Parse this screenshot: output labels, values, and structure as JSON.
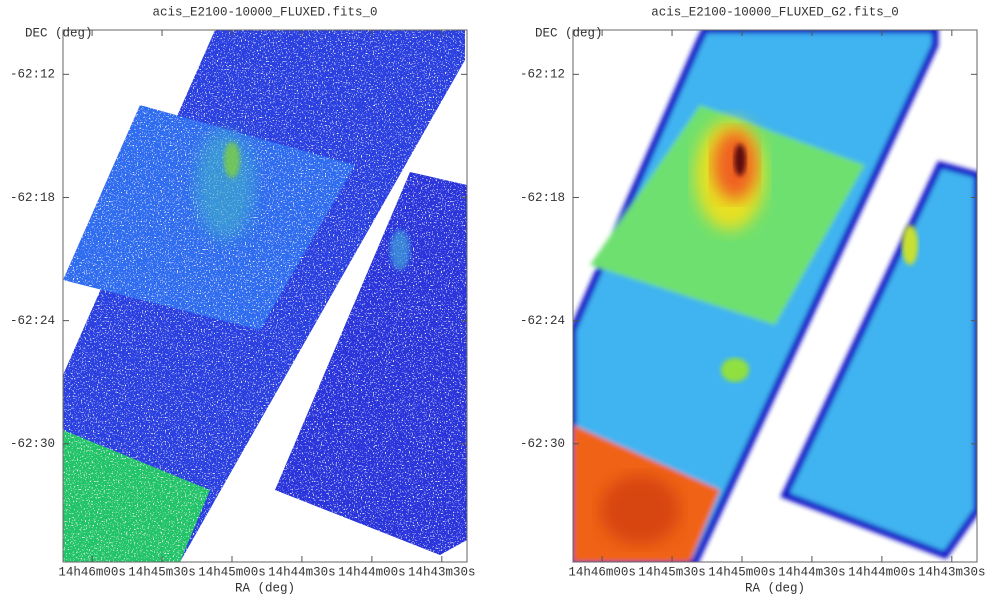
{
  "chart_data": [
    {
      "type": "image",
      "title": "acis_E2100-10000_FLUXED.fits_0",
      "xlabel": "RA (deg)",
      "ylabel": "DEC (deg)",
      "xlim": [
        221.552,
        220.83
      ],
      "ylim": [
        -62.596,
        -62.164
      ],
      "xticks": [
        {
          "value": 221.5,
          "label": "14h46m00s"
        },
        {
          "value": 221.375,
          "label": "14h45m30s"
        },
        {
          "value": 221.25,
          "label": "14h45m00s"
        },
        {
          "value": 221.125,
          "label": "14h44m30s"
        },
        {
          "value": 221.0,
          "label": "14h44m00s"
        },
        {
          "value": 220.875,
          "label": "14h43m30s"
        }
      ],
      "yticks": [
        {
          "value": -62.2,
          "label": "-62:12"
        },
        {
          "value": -62.3,
          "label": "-62:18"
        },
        {
          "value": -62.4,
          "label": "-62:24"
        },
        {
          "value": -62.5,
          "label": "-62:30"
        }
      ]
    },
    {
      "type": "image",
      "title": "acis_E2100-10000_FLUXED_G2.fits_0",
      "xlabel": "RA (deg)",
      "ylabel": "DEC (deg)",
      "xlim": [
        221.552,
        220.83
      ],
      "ylim": [
        -62.596,
        -62.164
      ],
      "xticks": [
        {
          "value": 221.5,
          "label": "14h46m00s"
        },
        {
          "value": 221.375,
          "label": "14h45m30s"
        },
        {
          "value": 221.25,
          "label": "14h45m00s"
        },
        {
          "value": 221.125,
          "label": "14h44m30s"
        },
        {
          "value": 221.0,
          "label": "14h44m00s"
        },
        {
          "value": 220.875,
          "label": "14h43m30s"
        }
      ],
      "yticks": [
        {
          "value": -62.2,
          "label": "-62:12"
        },
        {
          "value": -62.3,
          "label": "-62:18"
        },
        {
          "value": -62.4,
          "label": "-62:24"
        },
        {
          "value": -62.5,
          "label": "-62:30"
        }
      ]
    }
  ]
}
